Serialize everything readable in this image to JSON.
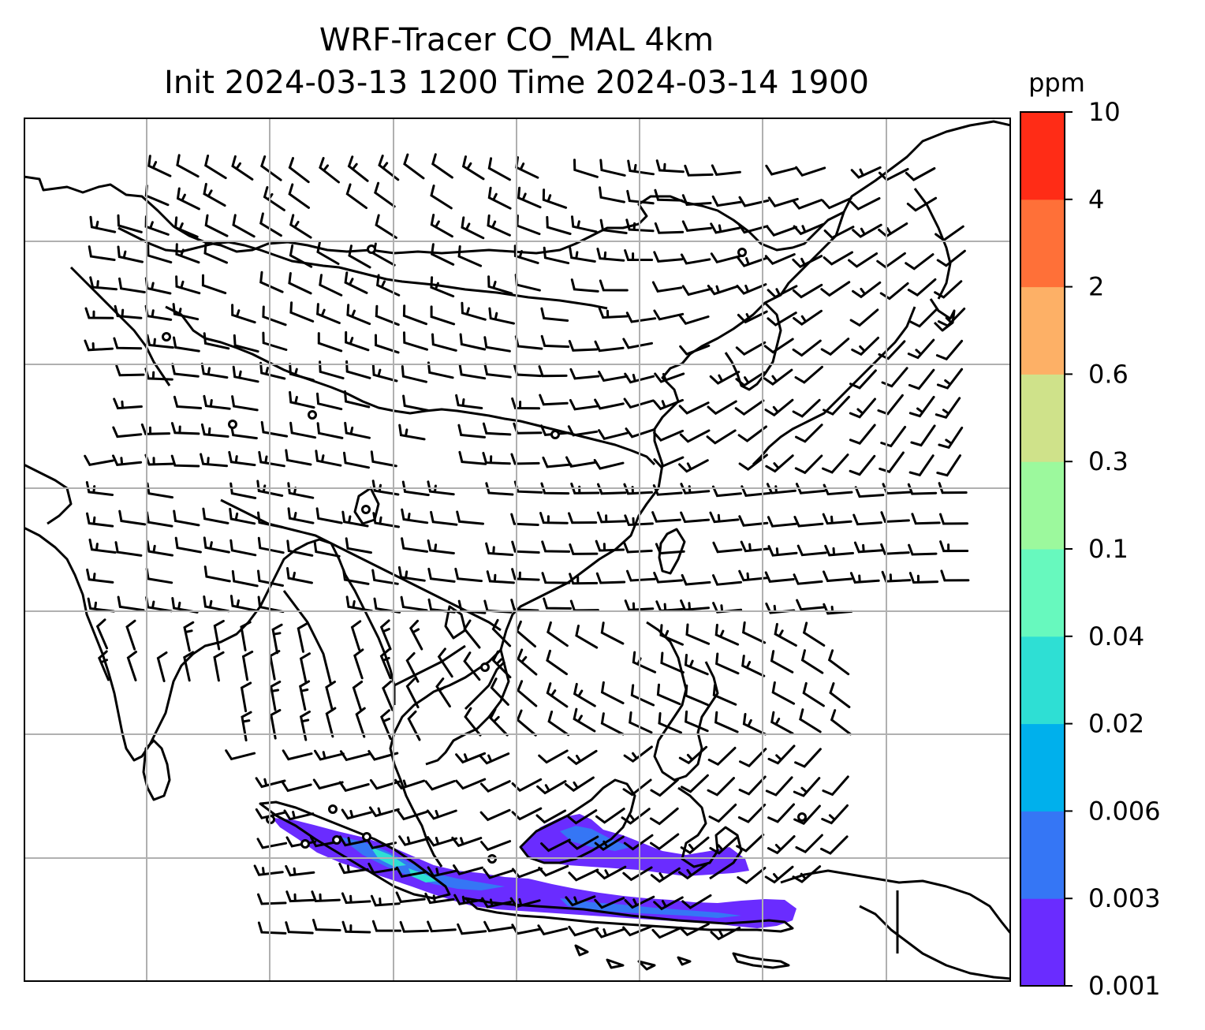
{
  "title_line1": "WRF-Tracer CO_MAL 4km",
  "title_line2": "Init 2024-03-13 1200 Time 2024-03-14 1900",
  "colorbar": {
    "unit": "ppm",
    "levels": [
      "0.001",
      "0.003",
      "0.006",
      "0.02",
      "0.04",
      "0.1",
      "0.3",
      "0.6",
      "2",
      "4",
      "10"
    ],
    "colors": [
      "#6a2cff",
      "#3576f5",
      "#00b0ec",
      "#2edfd4",
      "#67f9be",
      "#9cf99d",
      "#cfe28a",
      "#fdb066",
      "#ff7038",
      "#ff2c16"
    ]
  },
  "map": {
    "gridline_color": "#b0b0b0",
    "coastline_color": "#000000",
    "wind_barb_color": "#000000",
    "plume_primary_color": "#6a2cff",
    "plume_secondary_color": "#3576f5",
    "plume_tertiary_color": "#2edfd4"
  }
}
